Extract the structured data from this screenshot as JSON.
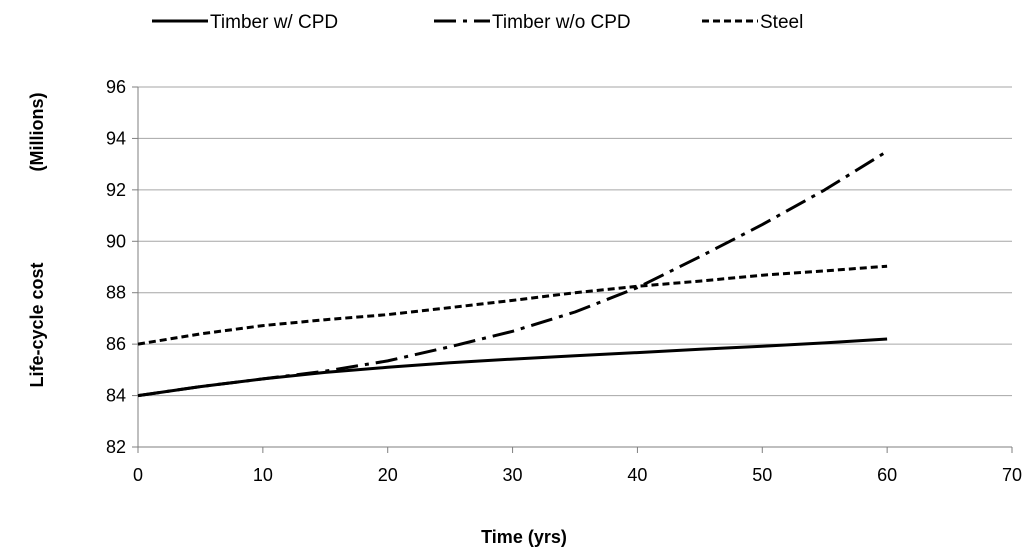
{
  "chart_data": {
    "type": "line",
    "xlabel": "Time (yrs)",
    "ylabel": "Life-cycle cost",
    "ylabel_unit": "(Millions)",
    "xlim": [
      0,
      70
    ],
    "ylim": [
      82,
      96
    ],
    "xticks": [
      0,
      10,
      20,
      30,
      40,
      50,
      60,
      70
    ],
    "yticks": [
      82,
      84,
      86,
      88,
      90,
      92,
      94,
      96
    ],
    "grid": "horizontal",
    "legend_position": "top",
    "series": [
      {
        "name": "Timber w/ CPD",
        "style": "solid",
        "color": "#000000",
        "x": [
          0,
          5,
          10,
          15,
          20,
          25,
          30,
          35,
          40,
          45,
          50,
          55,
          60
        ],
        "y": [
          84.0,
          84.35,
          84.65,
          84.9,
          85.1,
          85.28,
          85.42,
          85.55,
          85.67,
          85.8,
          85.92,
          86.05,
          86.2
        ]
      },
      {
        "name": "Timber w/o CPD",
        "style": "dash-dot",
        "color": "#000000",
        "x": [
          0,
          5,
          10,
          15,
          20,
          25,
          30,
          35,
          40,
          45,
          50,
          55,
          60
        ],
        "y": [
          84.0,
          84.35,
          84.65,
          84.95,
          85.35,
          85.9,
          86.5,
          87.25,
          88.2,
          89.4,
          90.65,
          92.0,
          93.5
        ]
      },
      {
        "name": "Steel",
        "style": "dashed",
        "color": "#000000",
        "x": [
          0,
          5,
          10,
          15,
          20,
          25,
          30,
          35,
          40,
          45,
          50,
          55,
          60
        ],
        "y": [
          86.0,
          86.4,
          86.72,
          86.95,
          87.15,
          87.42,
          87.7,
          88.0,
          88.25,
          88.45,
          88.68,
          88.85,
          89.03
        ]
      }
    ]
  }
}
